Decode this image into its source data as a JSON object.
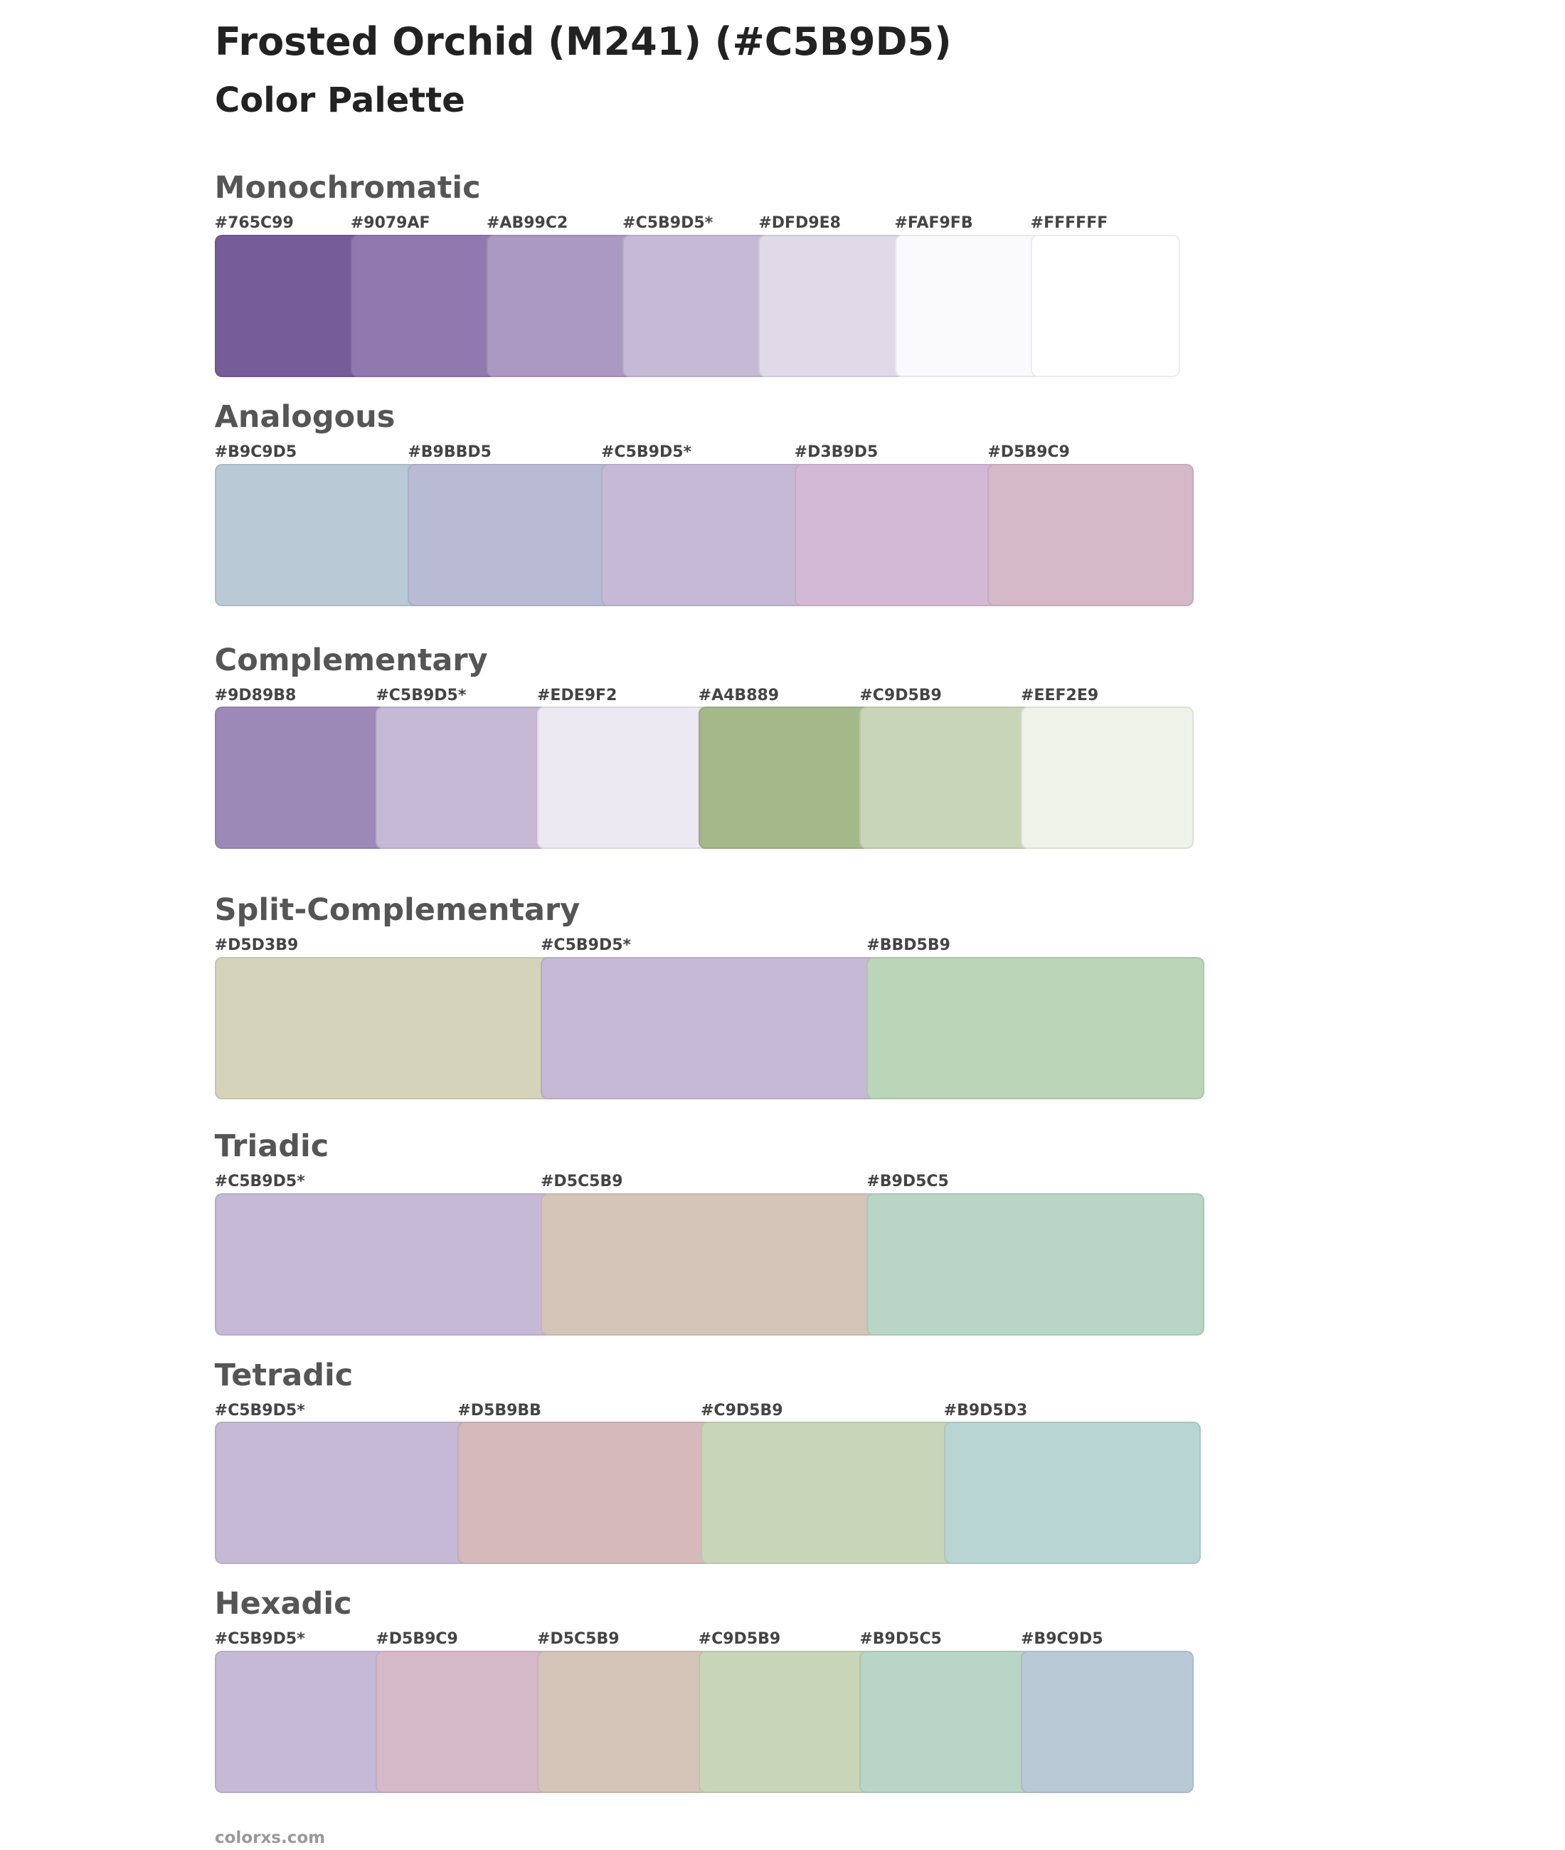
{
  "header": {
    "title": "Frosted Orchid (M241) (#C5B9D5)",
    "subtitle": "Color Palette"
  },
  "sections": [
    {
      "name": "Monochromatic",
      "swatches": [
        {
          "label": "#765C99",
          "color": "#765C99"
        },
        {
          "label": "#9079AF",
          "color": "#9079AF"
        },
        {
          "label": "#AB99C2",
          "color": "#AB99C2"
        },
        {
          "label": "#C5B9D5*",
          "color": "#C5B9D5"
        },
        {
          "label": "#DFD9E8",
          "color": "#DFD9E8"
        },
        {
          "label": "#FAF9FB",
          "color": "#FAF9FB"
        },
        {
          "label": "#FFFFFF",
          "color": "#FFFFFF"
        }
      ]
    },
    {
      "name": "Analogous",
      "swatches": [
        {
          "label": "#B9C9D5",
          "color": "#B9C9D5"
        },
        {
          "label": "#B9BBD5",
          "color": "#B9BBD5"
        },
        {
          "label": "#C5B9D5*",
          "color": "#C5B9D5"
        },
        {
          "label": "#D3B9D5",
          "color": "#D3B9D5"
        },
        {
          "label": "#D5B9C9",
          "color": "#D5B9C9"
        }
      ]
    },
    {
      "name": "Complementary",
      "swatches": [
        {
          "label": "#9D89B8",
          "color": "#9D89B8"
        },
        {
          "label": "#C5B9D5*",
          "color": "#C5B9D5"
        },
        {
          "label": "#EDE9F2",
          "color": "#EDE9F2"
        },
        {
          "label": "#A4B889",
          "color": "#A4B889"
        },
        {
          "label": "#C9D5B9",
          "color": "#C9D5B9"
        },
        {
          "label": "#EEF2E9",
          "color": "#EEF2E9"
        }
      ]
    },
    {
      "name": "Split-Complementary",
      "swatches": [
        {
          "label": "#D5D3B9",
          "color": "#D5D3B9"
        },
        {
          "label": "#C5B9D5*",
          "color": "#C5B9D5"
        },
        {
          "label": "#BBD5B9",
          "color": "#BBD5B9"
        }
      ]
    },
    {
      "name": "Triadic",
      "swatches": [
        {
          "label": "#C5B9D5*",
          "color": "#C5B9D5"
        },
        {
          "label": "#D5C5B9",
          "color": "#D5C5B9"
        },
        {
          "label": "#B9D5C5",
          "color": "#B9D5C5"
        }
      ]
    },
    {
      "name": "Tetradic",
      "swatches": [
        {
          "label": "#C5B9D5*",
          "color": "#C5B9D5"
        },
        {
          "label": "#D5B9BB",
          "color": "#D5B9BB"
        },
        {
          "label": "#C9D5B9",
          "color": "#C9D5B9"
        },
        {
          "label": "#B9D5D3",
          "color": "#B9D5D3"
        }
      ]
    },
    {
      "name": "Hexadic",
      "swatches": [
        {
          "label": "#C5B9D5*",
          "color": "#C5B9D5"
        },
        {
          "label": "#D5B9C9",
          "color": "#D5B9C9"
        },
        {
          "label": "#D5C5B9",
          "color": "#D5C5B9"
        },
        {
          "label": "#C9D5B9",
          "color": "#C9D5B9"
        },
        {
          "label": "#B9D5C5",
          "color": "#B9D5C5"
        },
        {
          "label": "#B9C9D5",
          "color": "#B9C9D5"
        }
      ]
    }
  ],
  "footer": "colorxs.com"
}
